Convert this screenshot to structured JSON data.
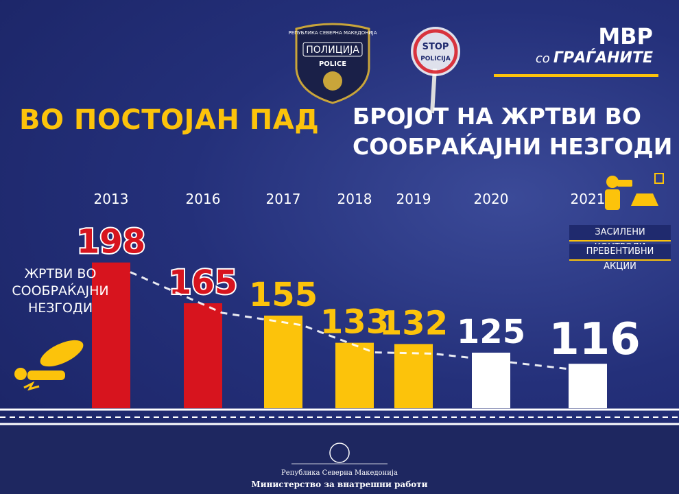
{
  "chart_data": {
    "type": "bar",
    "title": "ВО ПОСТОЈАН ПАД",
    "subtitle": "БРОЈОТ НА ЖРТВИ ВО СООБРАЌАЈНИ НЕЗГОДИ",
    "categories": [
      "2013",
      "2016",
      "2017",
      "2018",
      "2019",
      "2020",
      "2021"
    ],
    "series": [
      {
        "name": "ЖРТВИ ВО СООБРАЌАЈНИ НЕЗГОДИ",
        "values": [
          198,
          165,
          155,
          133,
          132,
          125,
          116
        ],
        "colors": [
          "#d7141e",
          "#d7141e",
          "#fcc30b",
          "#fcc30b",
          "#fcc30b",
          "#ffffff",
          "#ffffff"
        ]
      }
    ],
    "ylim": [
      80,
      200
    ]
  },
  "branding": {
    "line1": "МВР",
    "line2a": "со",
    "line2b": "ГРАЃАНИТЕ"
  },
  "measures": [
    "ЗАСИЛЕНИ КОНТРОЛИ",
    "ПРЕВЕНТИВНИ АКЦИИ"
  ],
  "badge": {
    "top": "РЕПУБЛИКА СЕВЕРНА МАКЕДОНИЈА",
    "middle": "ПОЛИЦИЈА",
    "bottom": "POLICE"
  },
  "sign": {
    "top": "STOP",
    "bottom": "POLICIJA"
  },
  "footer": {
    "country": "Република Северна Македонија",
    "ministry": "Министерство за внатрешни работи"
  }
}
